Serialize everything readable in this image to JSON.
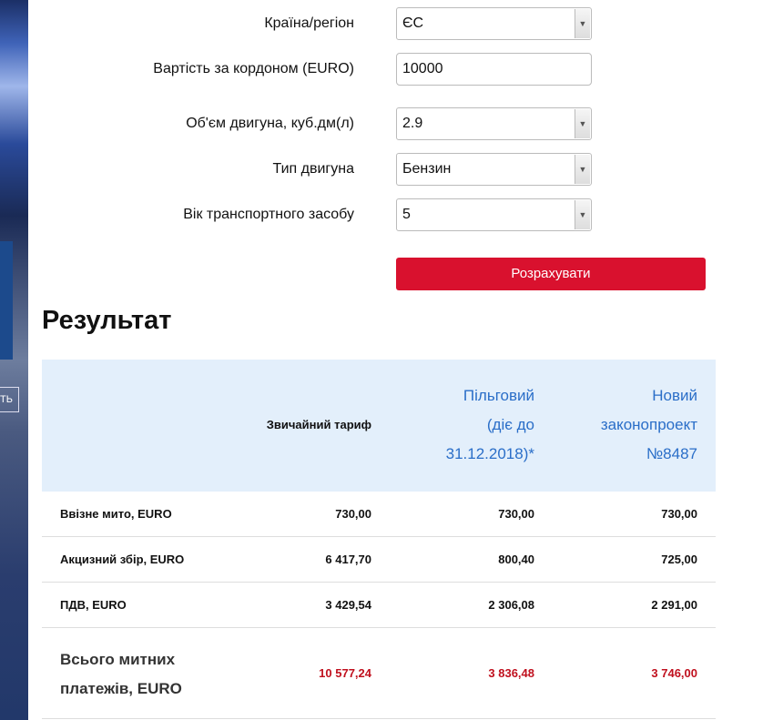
{
  "banner": {
    "button_label": "ТЬ"
  },
  "form": {
    "country": {
      "label": "Країна/регіон",
      "value": "ЄС"
    },
    "price": {
      "label": "Вартість за кордоном (EURO)",
      "value": "10000"
    },
    "engine_volume": {
      "label": "Об'єм двигуна, куб.дм(л)",
      "value": "2.9"
    },
    "engine_type": {
      "label": "Тип двигуна",
      "value": "Бензин"
    },
    "age": {
      "label": "Вік транспортного засобу",
      "value": "5"
    },
    "calculate_label": "Розрахувати"
  },
  "result": {
    "title": "Результат",
    "headers": [
      "Звичайний тариф",
      [
        "Пільговий",
        "(діє до",
        "31.12.2018)*"
      ],
      [
        "Новий",
        "законопроект",
        "№8487"
      ]
    ],
    "rows": [
      {
        "label": "Ввізне мито, EURO",
        "values": [
          "730,00",
          "730,00",
          "730,00"
        ]
      },
      {
        "label": "Акцизний збір, EURO",
        "values": [
          "6 417,70",
          "800,40",
          "725,00"
        ]
      },
      {
        "label": "ПДВ, EURO",
        "values": [
          "3 429,54",
          "2 306,08",
          "2 291,00"
        ]
      }
    ],
    "total": {
      "label": "Всього митних платежів, EURO",
      "values": [
        "10 577,24",
        "3 836,48",
        "3 746,00"
      ]
    }
  },
  "colors": {
    "accent": "#d9112e",
    "header_bg": "#e3effb",
    "header_text": "#2a6ec8",
    "total_value": "#c0101e"
  }
}
